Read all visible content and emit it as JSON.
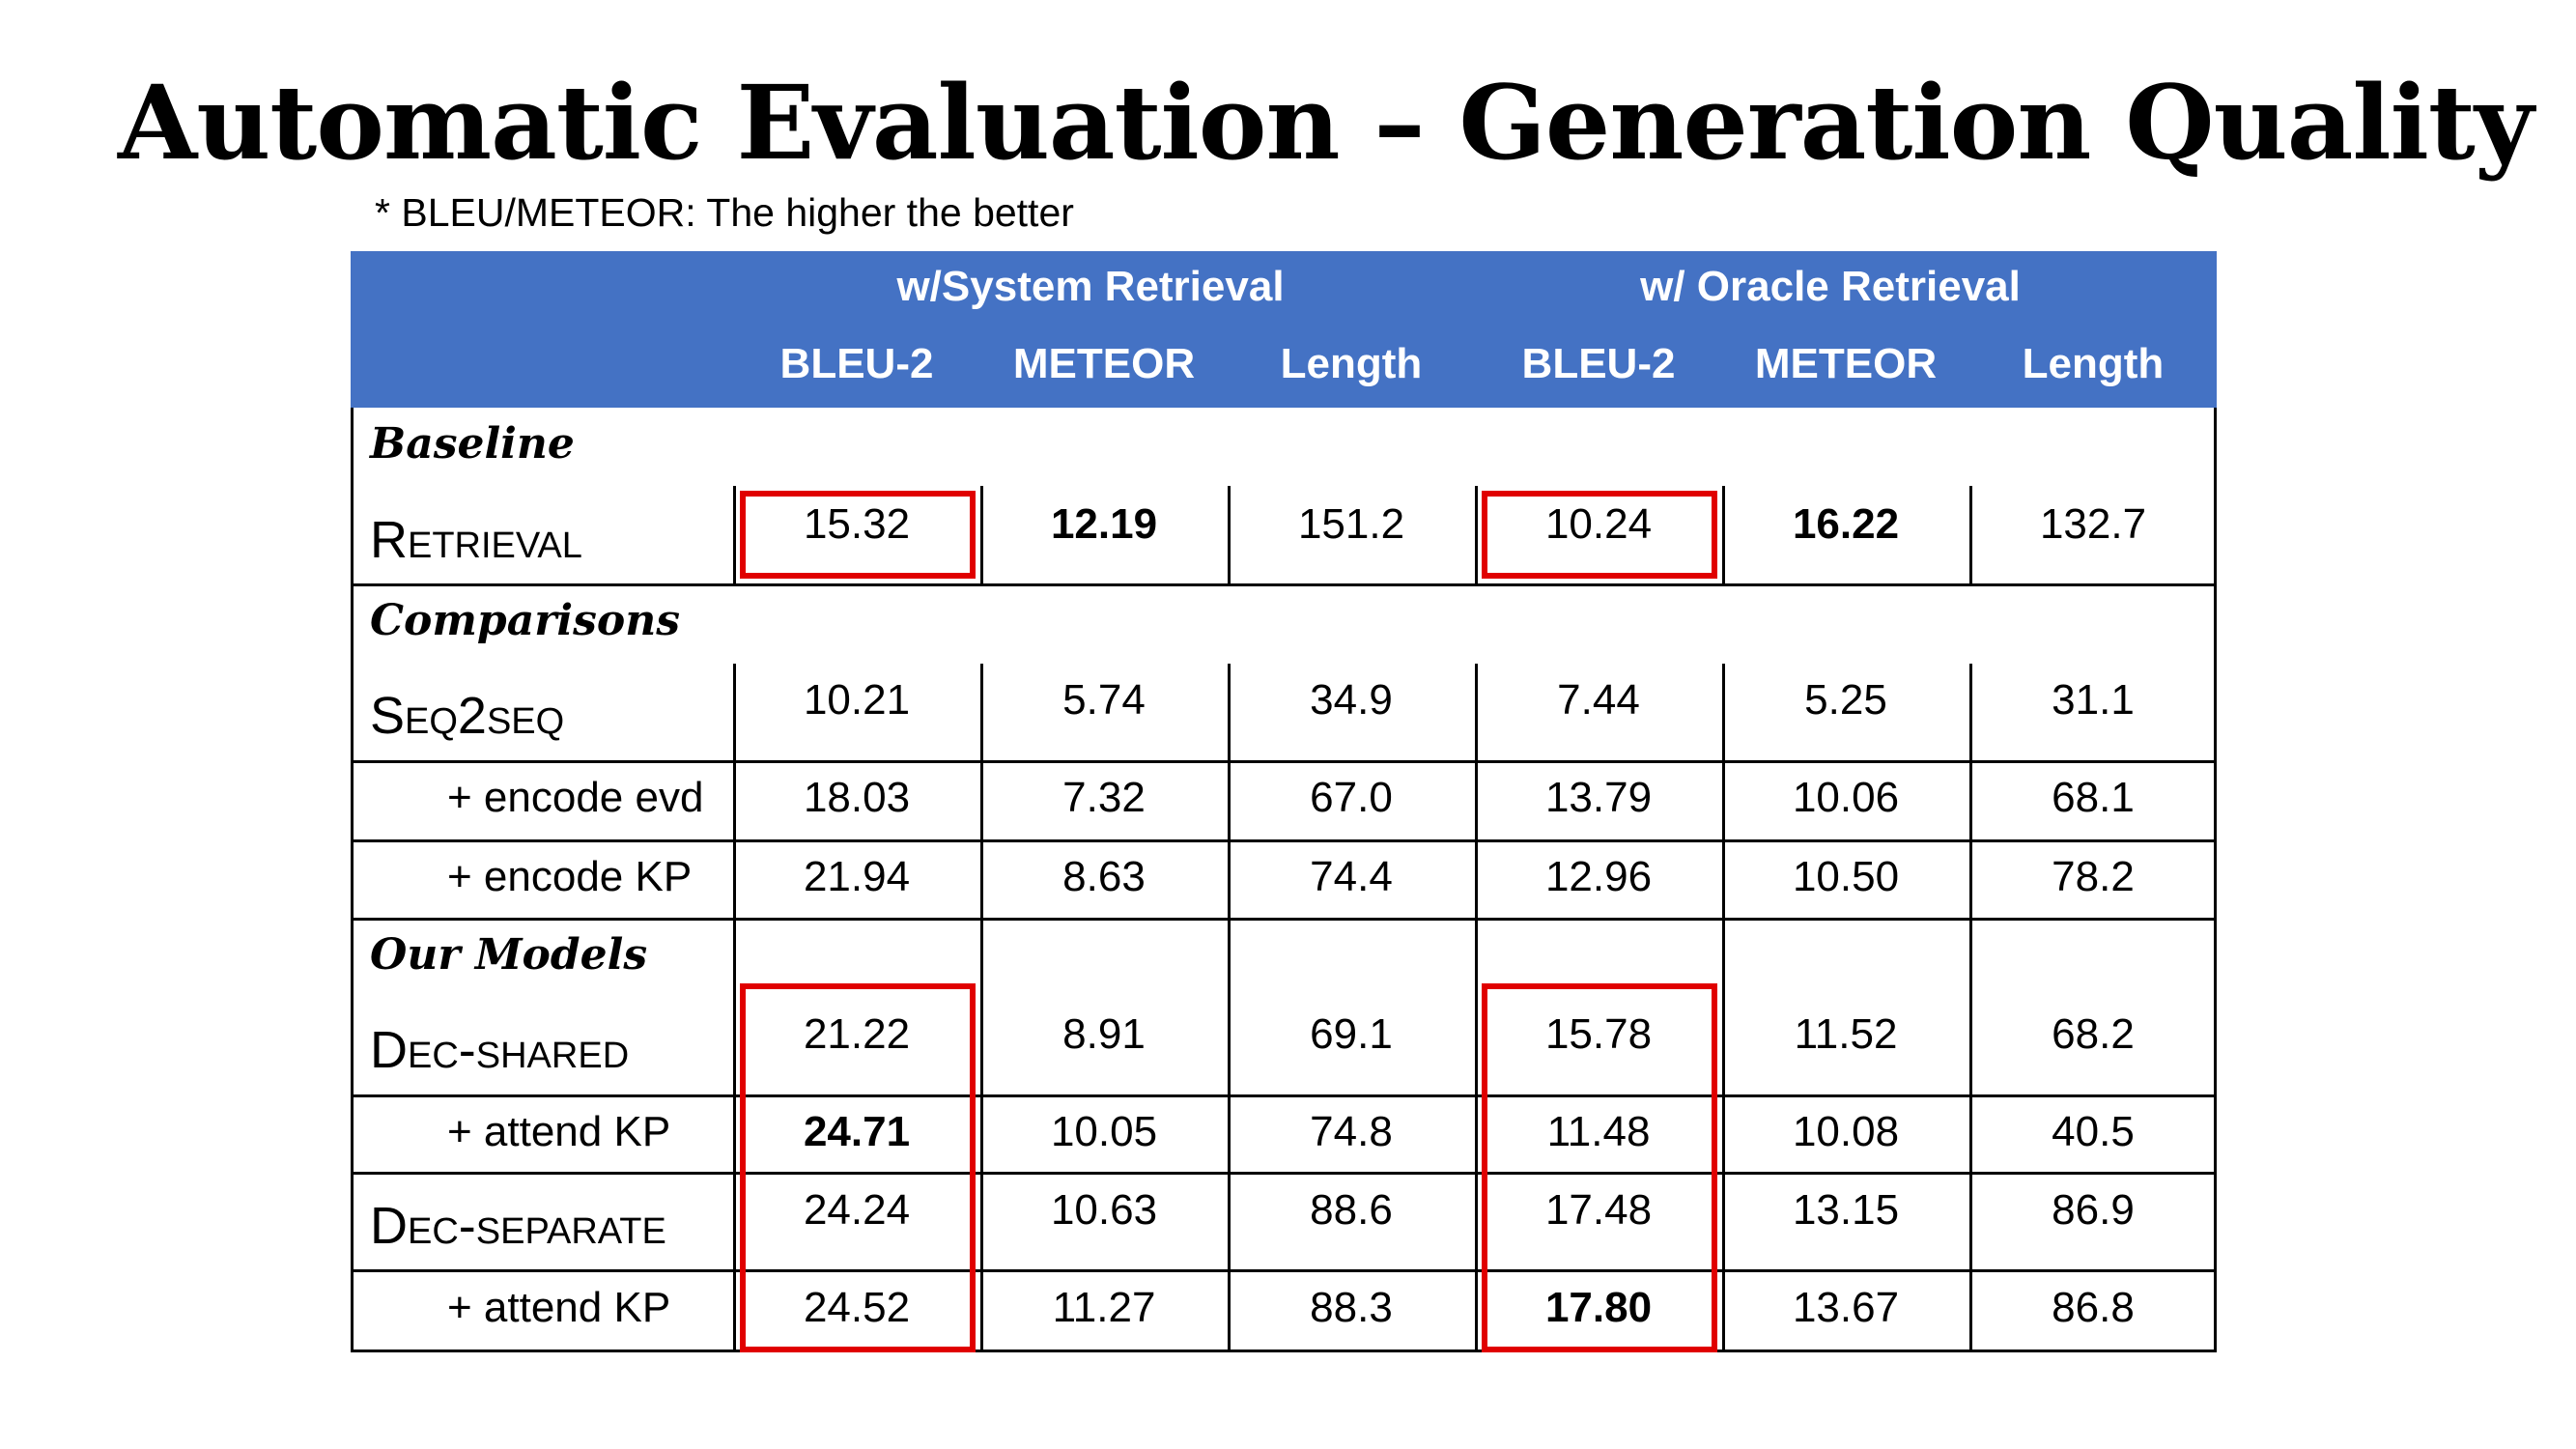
{
  "title": "Automatic Evaluation – Generation Quality",
  "note": "* BLEU/METEOR: The higher the better",
  "table": {
    "groups": [
      "w/System Retrieval",
      "w/ Oracle Retrieval"
    ],
    "columns": [
      "BLEU-2",
      "METEOR",
      "Length",
      "BLEU-2",
      "METEOR",
      "Length"
    ],
    "sections": [
      {
        "name": "Baseline",
        "rows": [
          {
            "label": "Retrieval",
            "values": [
              "15.32",
              "12.19",
              "151.2",
              "10.24",
              "16.22",
              "132.7"
            ]
          }
        ]
      },
      {
        "name": "Comparisons",
        "rows": [
          {
            "label": "Seq2seq",
            "values": [
              "10.21",
              "5.74",
              "34.9",
              "7.44",
              "5.25",
              "31.1"
            ]
          },
          {
            "label": "+ encode evd",
            "values": [
              "18.03",
              "7.32",
              "67.0",
              "13.79",
              "10.06",
              "68.1"
            ]
          },
          {
            "label": "+ encode KP",
            "values": [
              "21.94",
              "8.63",
              "74.4",
              "12.96",
              "10.50",
              "78.2"
            ]
          }
        ]
      },
      {
        "name": "Our Models",
        "rows": [
          {
            "label": "Dec-shared",
            "values": [
              "21.22",
              "8.91",
              "69.1",
              "15.78",
              "11.52",
              "68.2"
            ]
          },
          {
            "label": "+ attend KP",
            "values": [
              "24.71",
              "10.05",
              "74.8",
              "11.48",
              "10.08",
              "40.5"
            ]
          },
          {
            "label": "Dec-separate",
            "values": [
              "24.24",
              "10.63",
              "88.6",
              "17.48",
              "13.15",
              "86.9"
            ]
          },
          {
            "label": "+ attend KP",
            "values": [
              "24.52",
              "11.27",
              "88.3",
              "17.80",
              "13.67",
              "86.8"
            ]
          }
        ]
      }
    ]
  },
  "colors": {
    "header_bg": "#4472c4",
    "highlight": "#e00000"
  }
}
